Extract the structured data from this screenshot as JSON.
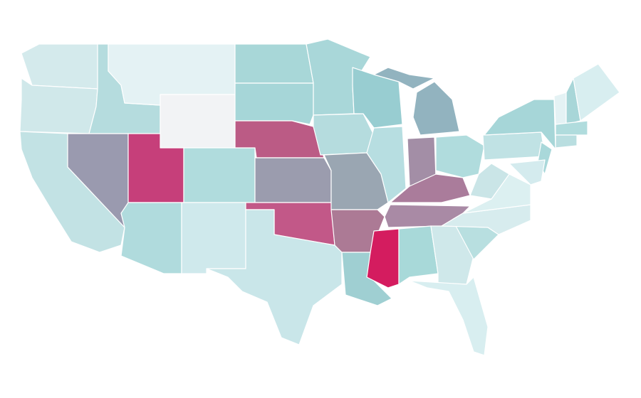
{
  "map": {
    "regions": [
      {
        "color": "#d4eaec"
      },
      {
        "color": "#d0e8ea"
      },
      {
        "color": "#c2e2e4"
      },
      {
        "color": "#b5dcde"
      },
      {
        "color": "#9a9aaf"
      },
      {
        "color": "#e4f2f4"
      },
      {
        "color": "#f2f3f5"
      },
      {
        "color": "#c63f7a"
      },
      {
        "color": "#b0dcdd"
      },
      {
        "color": "#b0dbdd"
      },
      {
        "color": "#cfe9ec"
      },
      {
        "color": "#a8d7d8"
      },
      {
        "color": "#a6d6d8"
      },
      {
        "color": "#bb5b85"
      },
      {
        "color": "#9b9cae"
      },
      {
        "color": "#c25888"
      },
      {
        "color": "#c9e6e9"
      },
      {
        "color": "#a9d7d9"
      },
      {
        "color": "#b5dcde"
      },
      {
        "color": "#9aa6b2"
      },
      {
        "color": "#ac7a95"
      },
      {
        "color": "#9fcfd2"
      },
      {
        "color": "#98cdd1"
      },
      {
        "color": "#b7dee1"
      },
      {
        "color": "#92b3bf"
      },
      {
        "color": "#92b3bf"
      },
      {
        "color": "#a38ea6"
      },
      {
        "color": "#b0dcdd"
      },
      {
        "color": "#aa7c9b"
      },
      {
        "color": "#a98aa5"
      },
      {
        "color": "#d41c5f"
      },
      {
        "color": "#a8d9d9"
      },
      {
        "color": "#cfe8ea"
      },
      {
        "color": "#d8eef0"
      },
      {
        "color": "#b8dfe0"
      },
      {
        "color": "#d7ecee"
      },
      {
        "color": "#dcf0f1"
      },
      {
        "color": "#cae5e7"
      },
      {
        "color": "#c0e2e4"
      },
      {
        "color": "#a6d6d8"
      },
      {
        "color": "#a9d8da"
      },
      {
        "color": "#d4ebee"
      },
      {
        "color": "#e4f2f4"
      },
      {
        "color": "#a8d6d8"
      },
      {
        "color": "#d8eef0"
      },
      {
        "color": "#b0dcdd"
      },
      {
        "color": "#b9dee0"
      }
    ]
  }
}
